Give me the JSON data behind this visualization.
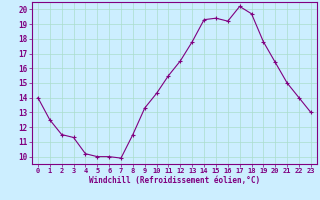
{
  "x": [
    0,
    1,
    2,
    3,
    4,
    5,
    6,
    7,
    8,
    9,
    10,
    11,
    12,
    13,
    14,
    15,
    16,
    17,
    18,
    19,
    20,
    21,
    22,
    23
  ],
  "y": [
    14,
    12.5,
    11.5,
    11.3,
    10.2,
    10.0,
    10.0,
    9.9,
    11.5,
    13.3,
    14.3,
    15.5,
    16.5,
    17.8,
    19.3,
    19.4,
    19.2,
    20.2,
    19.7,
    17.8,
    16.4,
    15.0,
    14.0,
    13.0
  ],
  "line_color": "#800080",
  "marker": "+",
  "marker_size": 3,
  "bg_color": "#cceeff",
  "grid_color": "#aaddcc",
  "xlabel": "Windchill (Refroidissement éolien,°C)",
  "xlim": [
    -0.5,
    23.5
  ],
  "ylim": [
    9.5,
    20.5
  ],
  "yticks": [
    10,
    11,
    12,
    13,
    14,
    15,
    16,
    17,
    18,
    19,
    20
  ],
  "xticks": [
    0,
    1,
    2,
    3,
    4,
    5,
    6,
    7,
    8,
    9,
    10,
    11,
    12,
    13,
    14,
    15,
    16,
    17,
    18,
    19,
    20,
    21,
    22,
    23
  ],
  "tick_color": "#800080",
  "label_color": "#800080",
  "spine_color": "#800080"
}
